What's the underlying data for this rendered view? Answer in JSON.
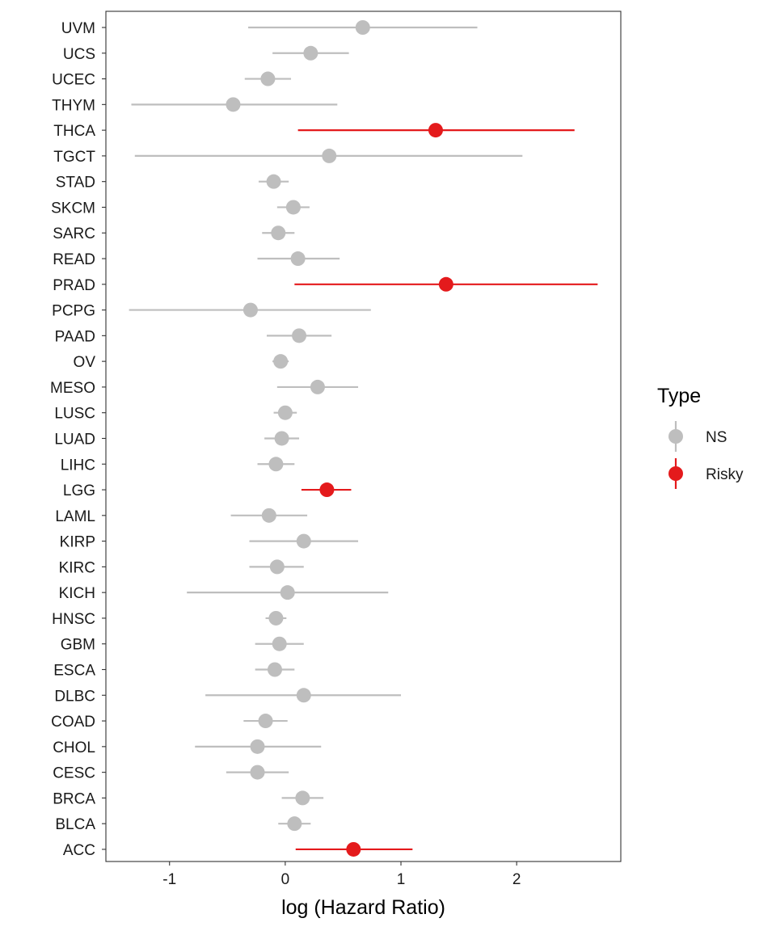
{
  "chart_data": {
    "type": "scatter",
    "subtype": "forest-plot",
    "xlabel": "log (Hazard Ratio)",
    "xlim": [
      -1.55,
      2.9
    ],
    "xticks": [
      -1,
      0,
      1,
      2
    ],
    "xtick_labels": [
      "-1",
      "0",
      "1",
      "2"
    ],
    "grid": false,
    "legend": {
      "title": "Type",
      "position": "right",
      "entries": [
        {
          "label": "NS",
          "color": "#bebebe"
        },
        {
          "label": "Risky",
          "color": "#e41a1c"
        }
      ]
    },
    "colors": {
      "NS": "#bebebe",
      "Risky": "#e41a1c"
    },
    "rows": [
      {
        "label": "UVM",
        "estimate": 0.67,
        "lower": -0.32,
        "upper": 1.66,
        "type": "NS"
      },
      {
        "label": "UCS",
        "estimate": 0.22,
        "lower": -0.11,
        "upper": 0.55,
        "type": "NS"
      },
      {
        "label": "UCEC",
        "estimate": -0.15,
        "lower": -0.35,
        "upper": 0.05,
        "type": "NS"
      },
      {
        "label": "THYM",
        "estimate": -0.45,
        "lower": -1.33,
        "upper": 0.45,
        "type": "NS"
      },
      {
        "label": "THCA",
        "estimate": 1.3,
        "lower": 0.11,
        "upper": 2.5,
        "type": "Risky"
      },
      {
        "label": "TGCT",
        "estimate": 0.38,
        "lower": -1.3,
        "upper": 2.05,
        "type": "NS"
      },
      {
        "label": "STAD",
        "estimate": -0.1,
        "lower": -0.23,
        "upper": 0.03,
        "type": "NS"
      },
      {
        "label": "SKCM",
        "estimate": 0.07,
        "lower": -0.07,
        "upper": 0.21,
        "type": "NS"
      },
      {
        "label": "SARC",
        "estimate": -0.06,
        "lower": -0.2,
        "upper": 0.08,
        "type": "NS"
      },
      {
        "label": "READ",
        "estimate": 0.11,
        "lower": -0.24,
        "upper": 0.47,
        "type": "NS"
      },
      {
        "label": "PRAD",
        "estimate": 1.39,
        "lower": 0.08,
        "upper": 2.7,
        "type": "Risky"
      },
      {
        "label": "PCPG",
        "estimate": -0.3,
        "lower": -1.35,
        "upper": 0.74,
        "type": "NS"
      },
      {
        "label": "PAAD",
        "estimate": 0.12,
        "lower": -0.16,
        "upper": 0.4,
        "type": "NS"
      },
      {
        "label": "OV",
        "estimate": -0.04,
        "lower": -0.11,
        "upper": 0.03,
        "type": "NS"
      },
      {
        "label": "MESO",
        "estimate": 0.28,
        "lower": -0.07,
        "upper": 0.63,
        "type": "NS"
      },
      {
        "label": "LUSC",
        "estimate": 0.0,
        "lower": -0.1,
        "upper": 0.1,
        "type": "NS"
      },
      {
        "label": "LUAD",
        "estimate": -0.03,
        "lower": -0.18,
        "upper": 0.12,
        "type": "NS"
      },
      {
        "label": "LIHC",
        "estimate": -0.08,
        "lower": -0.24,
        "upper": 0.08,
        "type": "NS"
      },
      {
        "label": "LGG",
        "estimate": 0.36,
        "lower": 0.14,
        "upper": 0.57,
        "type": "Risky"
      },
      {
        "label": "LAML",
        "estimate": -0.14,
        "lower": -0.47,
        "upper": 0.19,
        "type": "NS"
      },
      {
        "label": "KIRP",
        "estimate": 0.16,
        "lower": -0.31,
        "upper": 0.63,
        "type": "NS"
      },
      {
        "label": "KIRC",
        "estimate": -0.07,
        "lower": -0.31,
        "upper": 0.16,
        "type": "NS"
      },
      {
        "label": "KICH",
        "estimate": 0.02,
        "lower": -0.85,
        "upper": 0.89,
        "type": "NS"
      },
      {
        "label": "HNSC",
        "estimate": -0.08,
        "lower": -0.17,
        "upper": 0.01,
        "type": "NS"
      },
      {
        "label": "GBM",
        "estimate": -0.05,
        "lower": -0.26,
        "upper": 0.16,
        "type": "NS"
      },
      {
        "label": "ESCA",
        "estimate": -0.09,
        "lower": -0.26,
        "upper": 0.08,
        "type": "NS"
      },
      {
        "label": "DLBC",
        "estimate": 0.16,
        "lower": -0.69,
        "upper": 1.0,
        "type": "NS"
      },
      {
        "label": "COAD",
        "estimate": -0.17,
        "lower": -0.36,
        "upper": 0.02,
        "type": "NS"
      },
      {
        "label": "CHOL",
        "estimate": -0.24,
        "lower": -0.78,
        "upper": 0.31,
        "type": "NS"
      },
      {
        "label": "CESC",
        "estimate": -0.24,
        "lower": -0.51,
        "upper": 0.03,
        "type": "NS"
      },
      {
        "label": "BRCA",
        "estimate": 0.15,
        "lower": -0.03,
        "upper": 0.33,
        "type": "NS"
      },
      {
        "label": "BLCA",
        "estimate": 0.08,
        "lower": -0.06,
        "upper": 0.22,
        "type": "NS"
      },
      {
        "label": "ACC",
        "estimate": 0.59,
        "lower": 0.09,
        "upper": 1.1,
        "type": "Risky"
      }
    ]
  }
}
